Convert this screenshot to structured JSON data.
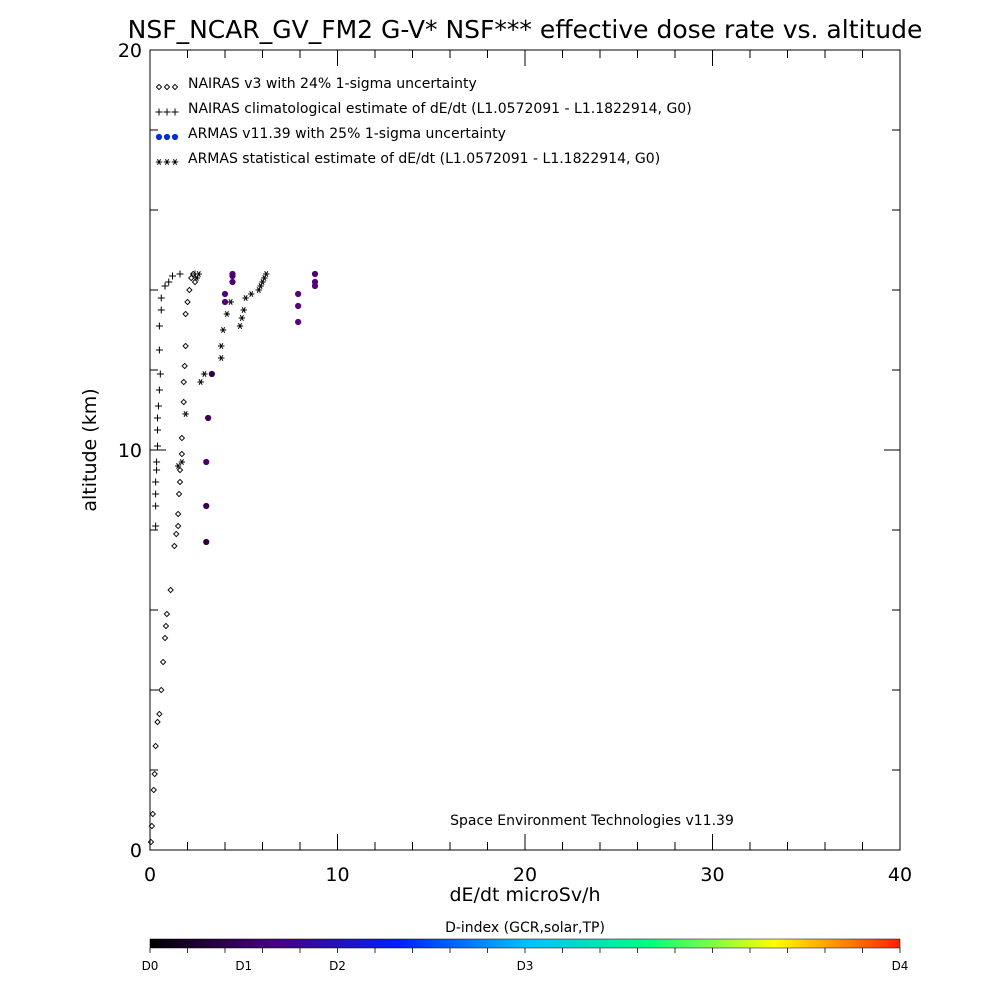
{
  "chart_data": {
    "type": "scatter",
    "title": "NSF_NCAR_GV_FM2 G-V* NSF*** effective dose rate vs. altitude",
    "xlabel": "dE/dt microSv/h",
    "ylabel": "altitude (km)",
    "xlim": [
      0,
      40
    ],
    "ylim": [
      0,
      20
    ],
    "x_ticks": [
      "0",
      "10",
      "20",
      "30",
      "40"
    ],
    "y_ticks": [
      "0",
      "10",
      "20"
    ],
    "grid": false,
    "legend_position": "top-left",
    "credit": "Space Environment Technologies v11.39",
    "series": [
      {
        "name": "NAIRAS v3 with 24% 1-sigma uncertainty",
        "marker": "diamond",
        "color": "#000000",
        "points": [
          [
            0.05,
            0.2
          ],
          [
            0.1,
            0.6
          ],
          [
            0.15,
            0.9
          ],
          [
            0.2,
            1.5
          ],
          [
            0.25,
            1.9
          ],
          [
            0.3,
            2.6
          ],
          [
            0.4,
            3.2
          ],
          [
            0.5,
            3.4
          ],
          [
            0.6,
            4.0
          ],
          [
            0.7,
            4.7
          ],
          [
            0.8,
            5.3
          ],
          [
            0.85,
            5.6
          ],
          [
            0.9,
            5.9
          ],
          [
            1.1,
            6.5
          ],
          [
            1.3,
            7.6
          ],
          [
            1.4,
            7.9
          ],
          [
            1.5,
            8.1
          ],
          [
            1.5,
            8.4
          ],
          [
            1.55,
            8.9
          ],
          [
            1.6,
            9.2
          ],
          [
            1.6,
            9.5
          ],
          [
            1.7,
            9.9
          ],
          [
            1.7,
            10.3
          ],
          [
            1.8,
            11.2
          ],
          [
            1.8,
            11.7
          ],
          [
            1.85,
            12.1
          ],
          [
            1.9,
            12.6
          ],
          [
            1.9,
            13.4
          ],
          [
            2.0,
            13.7
          ],
          [
            2.1,
            14.0
          ],
          [
            2.2,
            14.3
          ],
          [
            2.3,
            14.4
          ],
          [
            2.4,
            14.2
          ]
        ]
      },
      {
        "name": "NAIRAS climatological estimate of dE/dt (L1.0572091 - L1.1822914, G0)",
        "marker": "plus",
        "color": "#000000",
        "points": [
          [
            0.3,
            8.1
          ],
          [
            0.3,
            8.6
          ],
          [
            0.3,
            8.9
          ],
          [
            0.3,
            9.2
          ],
          [
            0.35,
            9.5
          ],
          [
            0.35,
            9.7
          ],
          [
            0.4,
            10.1
          ],
          [
            0.4,
            10.5
          ],
          [
            0.4,
            10.8
          ],
          [
            0.45,
            11.1
          ],
          [
            0.5,
            11.5
          ],
          [
            0.55,
            11.9
          ],
          [
            0.5,
            12.5
          ],
          [
            0.5,
            13.1
          ],
          [
            0.6,
            13.5
          ],
          [
            0.6,
            13.8
          ],
          [
            0.8,
            14.1
          ],
          [
            1.0,
            14.2
          ],
          [
            1.2,
            14.35
          ],
          [
            1.6,
            14.4
          ],
          [
            2.4,
            14.4
          ]
        ]
      },
      {
        "name": "ARMAS v11.39 with 25% 1-sigma uncertainty",
        "marker": "filled-circle",
        "color": "#0030d0",
        "points": [
          [
            3.0,
            7.7
          ],
          [
            3.0,
            8.6
          ],
          [
            3.0,
            9.7
          ],
          [
            3.1,
            10.8
          ],
          [
            3.3,
            11.9
          ],
          [
            4.0,
            13.7
          ],
          [
            4.0,
            13.9
          ],
          [
            4.4,
            14.2
          ],
          [
            4.4,
            14.4
          ],
          [
            4.4,
            14.35
          ],
          [
            7.9,
            13.2
          ],
          [
            7.9,
            13.6
          ],
          [
            7.9,
            13.9
          ],
          [
            8.8,
            14.1
          ],
          [
            8.8,
            14.2
          ],
          [
            8.8,
            14.4
          ]
        ]
      },
      {
        "name": "ARMAS statistical estimate of dE/dt (L1.0572091 - L1.1822914, G0)",
        "marker": "asterisk",
        "color": "#000000",
        "points": [
          [
            1.5,
            9.6
          ],
          [
            1.7,
            9.7
          ],
          [
            1.9,
            10.9
          ],
          [
            2.7,
            11.7
          ],
          [
            2.9,
            11.9
          ],
          [
            3.8,
            12.3
          ],
          [
            3.8,
            12.6
          ],
          [
            3.9,
            13.0
          ],
          [
            4.1,
            13.4
          ],
          [
            4.3,
            13.7
          ],
          [
            4.8,
            13.1
          ],
          [
            4.9,
            13.3
          ],
          [
            5.0,
            13.5
          ],
          [
            5.1,
            13.8
          ],
          [
            5.4,
            13.9
          ],
          [
            5.8,
            14.0
          ],
          [
            5.9,
            14.1
          ],
          [
            6.0,
            14.2
          ],
          [
            6.1,
            14.3
          ],
          [
            6.2,
            14.4
          ],
          [
            2.5,
            14.3
          ],
          [
            2.6,
            14.4
          ]
        ]
      }
    ],
    "colorbar": {
      "title": "D-index (GCR,solar,TP)",
      "labels": [
        {
          "text": "D0",
          "value": 0
        },
        {
          "text": "D1",
          "value": 0.25
        },
        {
          "text": "D2",
          "value": 0.5
        },
        {
          "text": "D3",
          "value": 1.0
        },
        {
          "text": "D4",
          "value": 2.0
        }
      ],
      "range": [
        0,
        2
      ],
      "colors": [
        "#000000",
        "#4a0080",
        "#0020ff",
        "#00c0ff",
        "#00ff80",
        "#ffff00",
        "#ff2000"
      ]
    }
  }
}
